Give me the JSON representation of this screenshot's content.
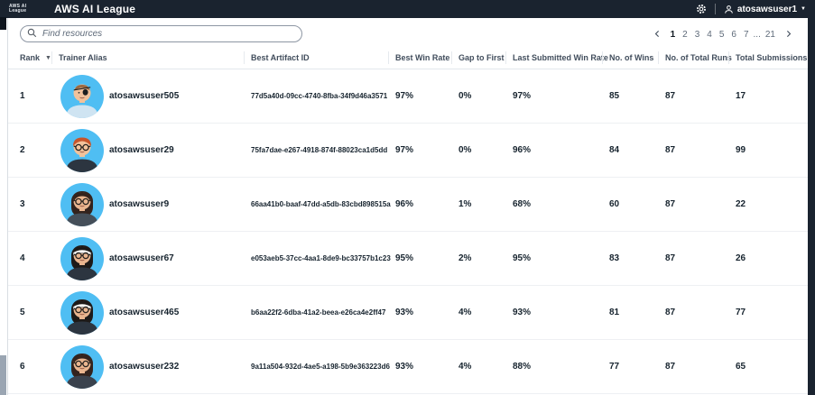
{
  "topnav": {
    "logo_text": "AWS AI League",
    "title": "AWS AI League",
    "user_label": "atosawsuser1"
  },
  "toolbar": {
    "search_placeholder": "Find resources",
    "pagination": {
      "pages": [
        "1",
        "2",
        "3",
        "4",
        "5",
        "6",
        "7",
        "...",
        "21"
      ],
      "current": "1"
    }
  },
  "table": {
    "columns": [
      "Rank",
      "Trainer Alias",
      "Best Artifact ID",
      "Best Win Rate",
      "Gap to First",
      "Last Submitted Win Rate",
      "No. of Wins",
      "No. of Total Runs",
      "Total Submissions"
    ],
    "sort_column": "Rank",
    "sort_direction": "ascending",
    "rows": [
      {
        "rank": "1",
        "alias": "atosawsuser505",
        "artifact": "77d5a40d-09cc-4740-8fba-34f9d46a3571",
        "best_win_rate": "97%",
        "gap_to_first": "0%",
        "last_win_rate": "97%",
        "wins": "85",
        "total_runs": "87",
        "submissions": "17",
        "avatar": {
          "bg": "#4fbef3",
          "skin": "#f2c29b",
          "hair": "buzz",
          "hairColor": "#9a6a42",
          "shirt": "#cfe4f2",
          "glasses": false,
          "eyepatch": true,
          "headband": false
        }
      },
      {
        "rank": "2",
        "alias": "atosawsuser29",
        "artifact": "75fa7dae-e267-4918-874f-88023ca1d5dd",
        "best_win_rate": "97%",
        "gap_to_first": "0%",
        "last_win_rate": "96%",
        "wins": "84",
        "total_runs": "87",
        "submissions": "99",
        "avatar": {
          "bg": "#4fbef3",
          "skin": "#f2c29b",
          "hair": "short",
          "hairColor": "#c8552b",
          "shirt": "#2c3540",
          "glasses": true,
          "eyepatch": false,
          "headband": false
        }
      },
      {
        "rank": "3",
        "alias": "atosawsuser9",
        "artifact": "66aa41b0-baaf-47dd-a5db-83cbd898515a",
        "best_win_rate": "96%",
        "gap_to_first": "1%",
        "last_win_rate": "68%",
        "wins": "60",
        "total_runs": "87",
        "submissions": "22",
        "avatar": {
          "bg": "#4fbef3",
          "skin": "#e9b58f",
          "hair": "long",
          "hairColor": "#33231d",
          "shirt": "#454f59",
          "glasses": true,
          "eyepatch": false,
          "headband": false
        }
      },
      {
        "rank": "4",
        "alias": "atosawsuser67",
        "artifact": "e053aeb5-37cc-4aa1-8de9-bc33757b1c23",
        "best_win_rate": "95%",
        "gap_to_first": "2%",
        "last_win_rate": "95%",
        "wins": "83",
        "total_runs": "87",
        "submissions": "26",
        "avatar": {
          "bg": "#4fbef3",
          "skin": "#e9b58f",
          "hair": "long",
          "hairColor": "#1e1a18",
          "shirt": "#2c3540",
          "glasses": true,
          "eyepatch": false,
          "headband": true
        }
      },
      {
        "rank": "5",
        "alias": "atosawsuser465",
        "artifact": "b6aa22f2-6dba-41a2-beea-e26ca4e2ff47",
        "best_win_rate": "93%",
        "gap_to_first": "4%",
        "last_win_rate": "93%",
        "wins": "81",
        "total_runs": "87",
        "submissions": "77",
        "avatar": {
          "bg": "#4fbef3",
          "skin": "#e9b58f",
          "hair": "long",
          "hairColor": "#1e1a18",
          "shirt": "#2c3540",
          "glasses": true,
          "eyepatch": false,
          "headband": true
        }
      },
      {
        "rank": "6",
        "alias": "atosawsuser232",
        "artifact": "9a11a504-932d-4ae5-a198-5b9e363223d6",
        "best_win_rate": "93%",
        "gap_to_first": "4%",
        "last_win_rate": "88%",
        "wins": "77",
        "total_runs": "87",
        "submissions": "65",
        "avatar": {
          "bg": "#4fbef3",
          "skin": "#e9b58f",
          "hair": "long",
          "hairColor": "#33231d",
          "shirt": "#3a424d",
          "glasses": true,
          "eyepatch": false,
          "headband": false
        }
      }
    ]
  },
  "colors": {
    "navbar_bg": "#1a232f",
    "avatar_bg": "#4fbef3",
    "text_primary": "#16232e",
    "header_text": "#414d5c",
    "divider": "#e6eaee"
  }
}
